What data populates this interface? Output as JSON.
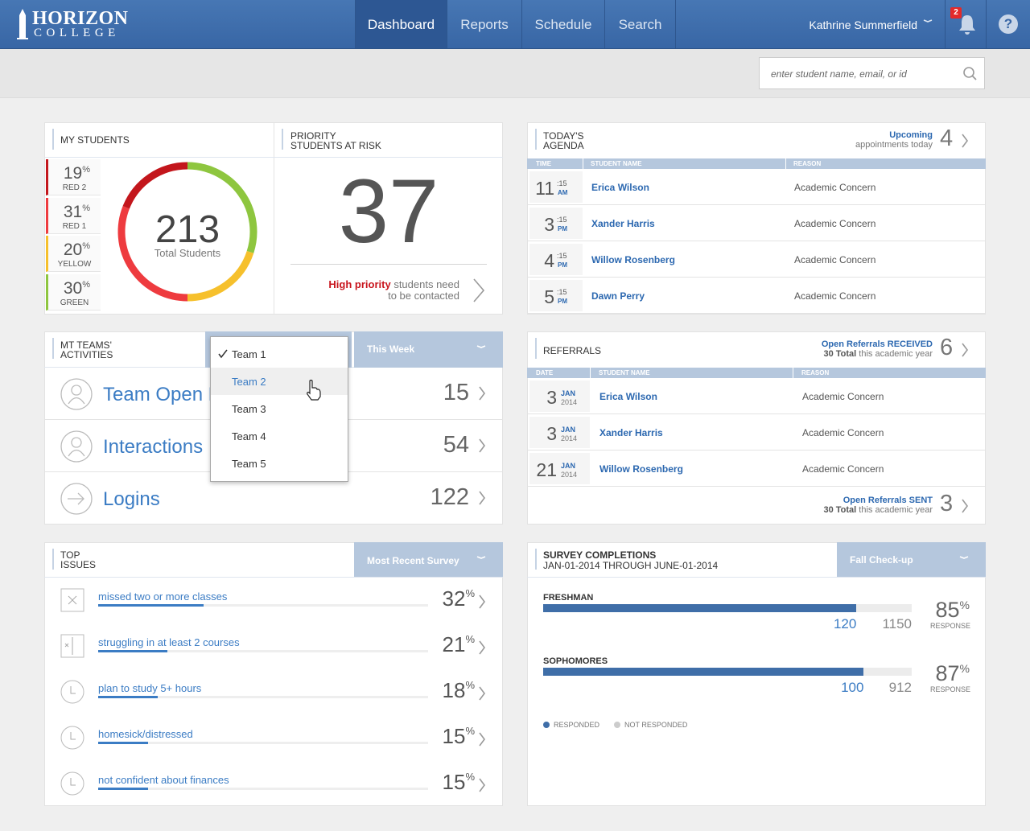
{
  "nav": {
    "brand": "HORIZON",
    "brand_sub": "COLLEGE",
    "tabs": [
      "Dashboard",
      "Reports",
      "Schedule",
      "Search"
    ],
    "active_tab": 0,
    "user": "Kathrine Summerfield",
    "notification_count": 2,
    "help": "?"
  },
  "search_placeholder": "enter student name, email, or id",
  "percent_sign": "%",
  "my_students": {
    "title": "MY STUDENTS",
    "total": 213,
    "total_label": "Total Students",
    "groups": [
      {
        "value": 19,
        "label": "RED 2",
        "color": "#c3161c"
      },
      {
        "value": 31,
        "label": "RED 1",
        "color": "#ee3b3f"
      },
      {
        "value": 20,
        "label": "YELLOW",
        "color": "#f6c02c"
      },
      {
        "value": 30,
        "label": "GREEN",
        "color": "#8ec63f"
      }
    ]
  },
  "priority": {
    "title": [
      "PRIORITY",
      "STUDENTS AT RISK"
    ],
    "count": 37,
    "highlight": "High priority",
    "message": "students need",
    "message2": "to be contacted"
  },
  "agenda": {
    "title": [
      "TODAY'S",
      "AGENDA"
    ],
    "upcoming": "Upcoming",
    "upcoming_sub": "appointments today",
    "count": 4,
    "columns": [
      "TIME",
      "STUDENT NAME",
      "REASON"
    ],
    "rows": [
      {
        "hour": 11,
        "minutes": ":15",
        "period": "AM",
        "student": "Erica Wilson",
        "reason": "Academic Concern"
      },
      {
        "hour": 3,
        "minutes": ":15",
        "period": "PM",
        "student": "Xander Harris",
        "reason": "Academic Concern"
      },
      {
        "hour": 4,
        "minutes": ":15",
        "period": "PM",
        "student": "Willow Rosenberg",
        "reason": "Academic Concern"
      },
      {
        "hour": 5,
        "minutes": ":15",
        "period": "PM",
        "student": "Dawn Perry",
        "reason": "Academic Concern"
      }
    ]
  },
  "teams": {
    "title": [
      "MT TEAMS'",
      "ACTIVITIES"
    ],
    "period": "This Week",
    "options": [
      "Team 1",
      "Team 2",
      "Team 3",
      "Team 4",
      "Team 5"
    ],
    "selected": 0,
    "hovered": 1,
    "rows": [
      {
        "label": "Team Open Referrals",
        "value": 15
      },
      {
        "label": "Interactions",
        "value": 54
      },
      {
        "label": "Logins",
        "value": 122
      }
    ]
  },
  "referrals": {
    "title": "REFERRALS",
    "received": "Open Referrals RECEIVED",
    "received_total": "30 Total",
    "received_note": "this academic year",
    "received_count": 6,
    "columns": [
      "DATE",
      "STUDENT NAME",
      "REASON"
    ],
    "rows": [
      {
        "day": 3,
        "month": "JAN",
        "year": 2014,
        "student": "Erica Wilson",
        "reason": "Academic Concern"
      },
      {
        "day": 3,
        "month": "JAN",
        "year": 2014,
        "student": "Xander Harris",
        "reason": "Academic Concern"
      },
      {
        "day": 21,
        "month": "JAN",
        "year": 2014,
        "student": "Willow Rosenberg",
        "reason": "Academic Concern"
      }
    ],
    "sent": "Open Referrals SENT",
    "sent_total": "30 Total",
    "sent_note": "this academic year",
    "sent_count": 3
  },
  "top_issues": {
    "title": [
      "TOP",
      "ISSUES"
    ],
    "filter": "Most Recent Survey",
    "items": [
      {
        "label": "missed two or more classes",
        "value": 32
      },
      {
        "label": "struggling in at least 2 courses",
        "value": 21
      },
      {
        "label": "plan to study 5+ hours",
        "value": 18
      },
      {
        "label": "homesick/distressed",
        "value": 15
      },
      {
        "label": "not confident about finances",
        "value": 15
      }
    ]
  },
  "survey": {
    "title": "SURVEY COMPLETIONS",
    "range": "JAN-01-2014 THROUGH JUNE-01-2014",
    "filter": "Fall Check-up",
    "response_label": "RESPONSE",
    "rows": [
      {
        "label": "FRESHMAN",
        "responded": 120,
        "total": 1150,
        "response": 85
      },
      {
        "label": "SOPHOMORES",
        "responded": 100,
        "total": 912,
        "response": 87
      }
    ],
    "legend": [
      "RESPONDED",
      "NOT RESPONDED"
    ]
  }
}
